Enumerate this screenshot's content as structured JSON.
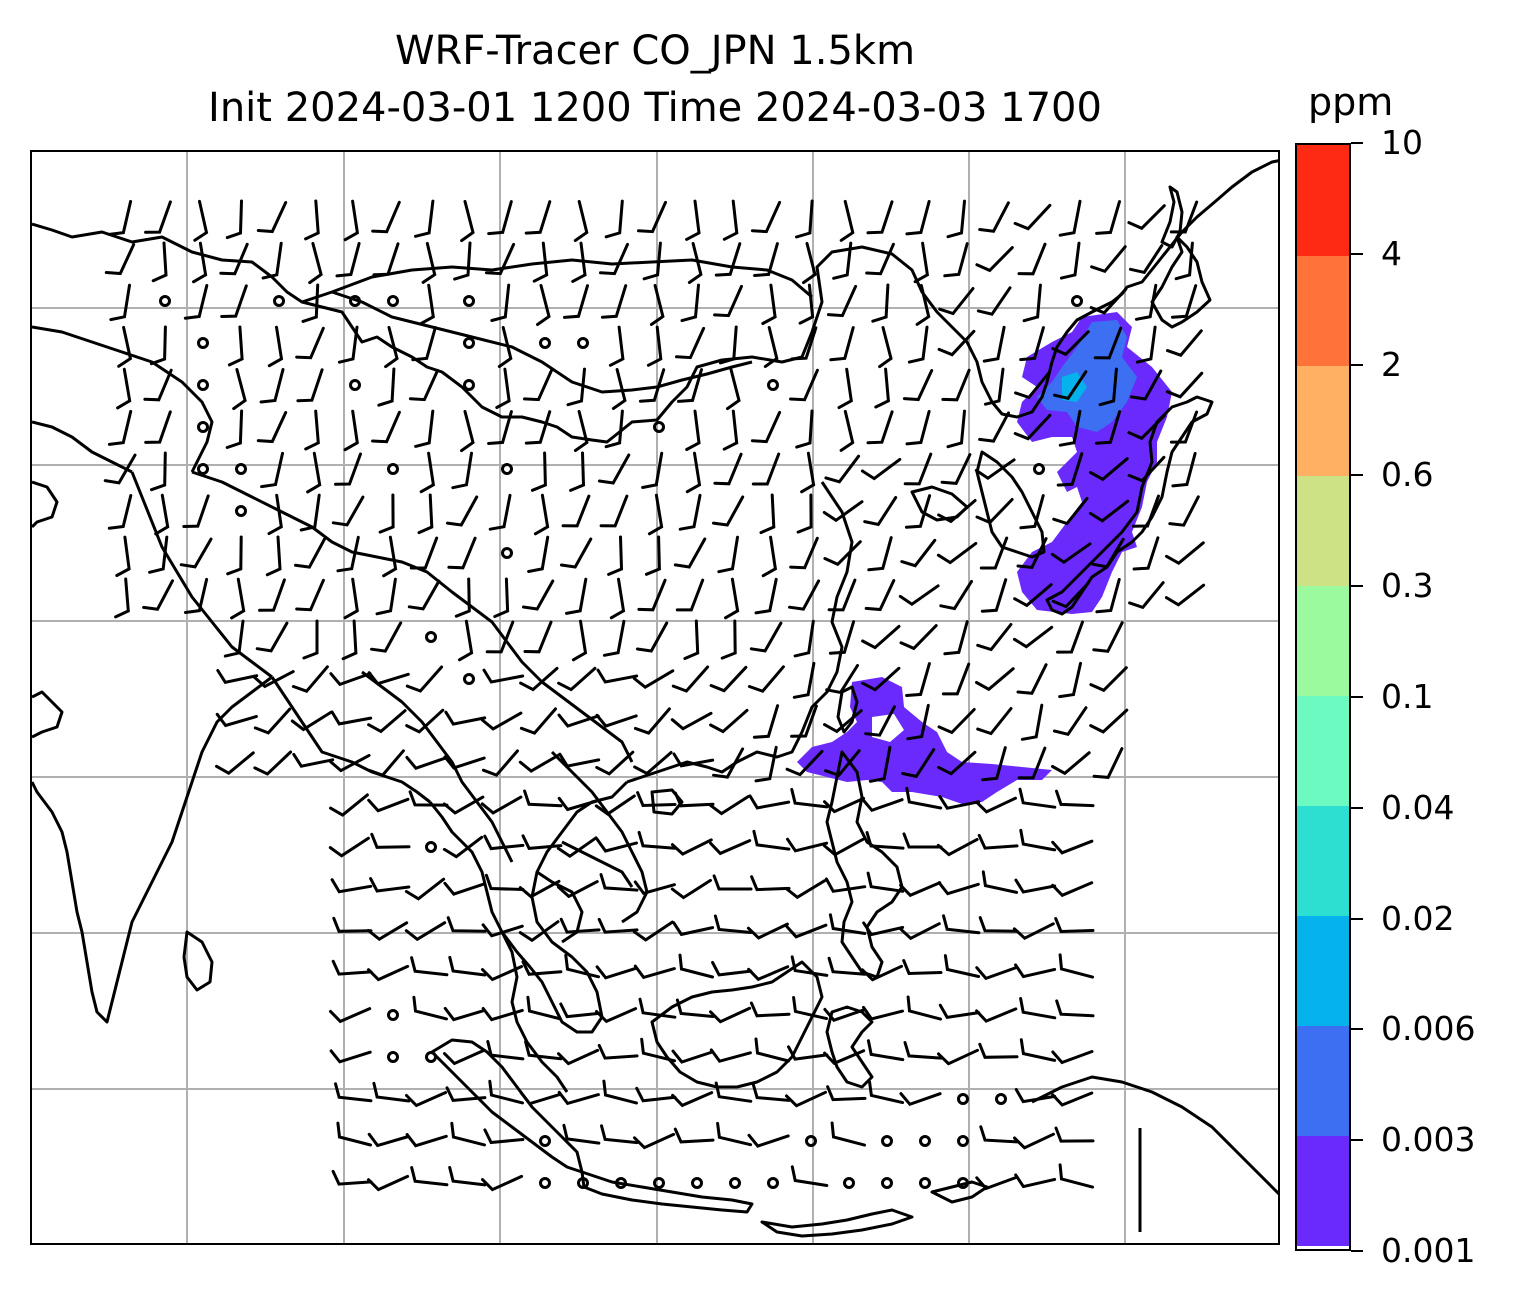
{
  "title": {
    "line1": "WRF-Tracer CO_JPN 1.5km",
    "line2": "Init 2024-03-01 1200 Time 2024-03-03 1700"
  },
  "colorbar": {
    "unit": "ppm",
    "levels": [
      "0.001",
      "0.003",
      "0.006",
      "0.02",
      "0.04",
      "0.1",
      "0.3",
      "0.6",
      "2",
      "4",
      "10"
    ],
    "colors": [
      "#6a2afc",
      "#3c6ff1",
      "#06b2ec",
      "#2ddfd0",
      "#6cfac1",
      "#9bfa9e",
      "#cce285",
      "#ffb062",
      "#ff7239",
      "#ff2a14"
    ]
  },
  "map": {
    "gridline_color": "#b0b0b0",
    "coastline_color": "#000000",
    "tracer_color": "#6a2afc",
    "tracer_secondary_color": "#3c6ff1",
    "tracer_tertiary_color": "#06b2ec",
    "wind_barb_color": "#000000"
  }
}
